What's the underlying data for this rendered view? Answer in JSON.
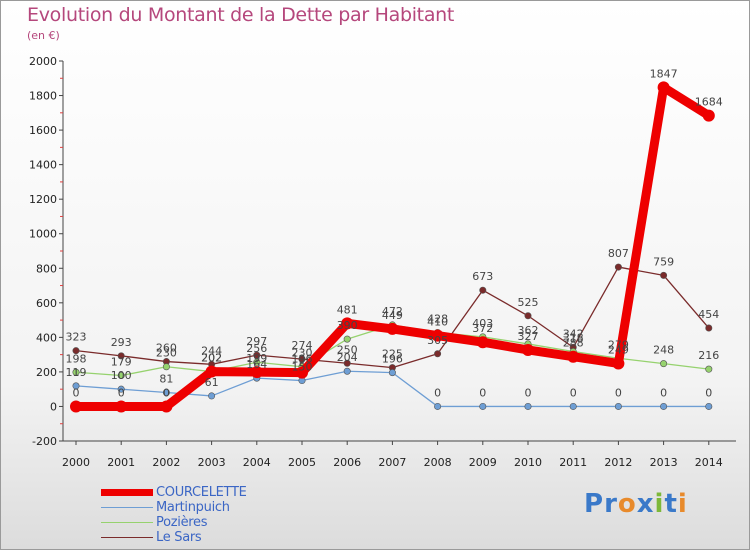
{
  "title": "Evolution du Montant de la Dette par Habitant",
  "subtitle": "(en €)",
  "logo": {
    "text": "Proxiti",
    "letters": [
      {
        "char": "P",
        "color": "#3a79c9"
      },
      {
        "char": "r",
        "color": "#3a79c9"
      },
      {
        "char": "o",
        "color": "#e88a2b"
      },
      {
        "char": "x",
        "color": "#3a79c9"
      },
      {
        "char": "i",
        "color": "#7db83a"
      },
      {
        "char": "t",
        "color": "#3a79c9"
      },
      {
        "char": "i",
        "color": "#e88a2b"
      }
    ]
  },
  "chart_data": {
    "type": "line",
    "x": [
      "2000",
      "2001",
      "2002",
      "2003",
      "2004",
      "2005",
      "2006",
      "2007",
      "2008",
      "2009",
      "2010",
      "2011",
      "2012",
      "2013",
      "2014"
    ],
    "ylim": [
      -200,
      2000
    ],
    "yticks": [
      -200,
      0,
      200,
      400,
      600,
      800,
      1000,
      1200,
      1400,
      1600,
      1800,
      2000
    ],
    "grid": false,
    "legend_position": "bottom-left",
    "series": [
      {
        "name": "COURCELETTE",
        "color": "#ee0000",
        "thick": true,
        "values": [
          0,
          0,
          0,
          202,
          199,
          196,
          481,
          449,
          410,
          372,
          327,
          288,
          249,
          1847,
          1684
        ],
        "labels": [
          "0",
          "0",
          "0",
          "202",
          "199",
          "196",
          "481",
          "449",
          "410",
          "372",
          "327",
          "288",
          "249",
          "1847",
          "1684"
        ]
      },
      {
        "name": "Martinpuich",
        "color": "#6e9ed4",
        "thick": false,
        "values": [
          119,
          100,
          81,
          61,
          164,
          150,
          204,
          196,
          0,
          0,
          0,
          0,
          0,
          0,
          0
        ],
        "labels": [
          "119",
          "100",
          "81",
          "61",
          "164",
          "150",
          "204",
          "196",
          "0",
          "0",
          "0",
          "0",
          "0",
          "0",
          "0"
        ]
      },
      {
        "name": "Pozières",
        "color": "#96d26e",
        "thick": false,
        "values": [
          198,
          179,
          230,
          202,
          256,
          230,
          390,
          472,
          428,
          403,
          362,
          318,
          279,
          248,
          216
        ],
        "labels": [
          "198",
          "179",
          "230",
          "202",
          "256",
          "230",
          "390",
          "472",
          "428",
          "403",
          "362",
          "318",
          "279",
          "248",
          "216"
        ]
      },
      {
        "name": "Le Sars",
        "color": "#7a2b2b",
        "thick": false,
        "values": [
          323,
          293,
          260,
          244,
          297,
          274,
          250,
          225,
          305,
          673,
          525,
          342,
          807,
          759,
          454
        ],
        "labels": [
          "323",
          "293",
          "260",
          "244",
          "297",
          "274",
          "250",
          "225",
          "305",
          "673",
          "525",
          "342",
          "807",
          "759",
          "454"
        ]
      }
    ]
  }
}
